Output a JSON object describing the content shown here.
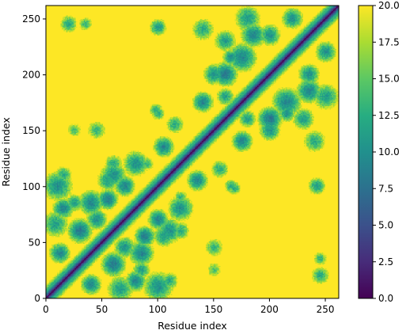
{
  "chart_data": {
    "type": "heatmap",
    "title": "",
    "xlabel": "Residue index",
    "ylabel": "Residue index",
    "n_residues": 262,
    "xlim": [
      0,
      262
    ],
    "ylim": [
      0,
      262
    ],
    "xticks": [
      0,
      50,
      100,
      150,
      200,
      250
    ],
    "yticks": [
      0,
      50,
      100,
      150,
      200,
      250
    ],
    "x_tick_labels": [
      "0",
      "50",
      "100",
      "150",
      "200",
      "250"
    ],
    "y_tick_labels": [
      "0",
      "50",
      "100",
      "150",
      "200",
      "250"
    ],
    "colormap": "viridis",
    "vmin": 0.0,
    "vmax": 20.0,
    "colorbar_ticks": [
      0.0,
      2.5,
      5.0,
      7.5,
      10.0,
      12.5,
      15.0,
      17.5,
      20.0
    ],
    "colorbar_tick_labels": [
      "0.0",
      "2.5",
      "5.0",
      "7.5",
      "10.0",
      "12.5",
      "15.0",
      "17.5",
      "20.0"
    ],
    "description_of_values": "Symmetric pairwise residue distance map; diagonal ~0, saturated at 20 elsewhere except contact blobs",
    "contacts": [
      {
        "i": 12,
        "j": 40,
        "r": 10,
        "v": 9
      },
      {
        "i": 8,
        "j": 66,
        "r": 12,
        "v": 11
      },
      {
        "i": 10,
        "j": 100,
        "r": 14,
        "v": 10
      },
      {
        "i": 15,
        "j": 80,
        "r": 10,
        "v": 9
      },
      {
        "i": 30,
        "j": 60,
        "r": 12,
        "v": 8
      },
      {
        "i": 25,
        "j": 85,
        "r": 8,
        "v": 11
      },
      {
        "i": 40,
        "j": 85,
        "r": 12,
        "v": 9
      },
      {
        "i": 55,
        "j": 88,
        "r": 10,
        "v": 8
      },
      {
        "i": 45,
        "j": 70,
        "r": 10,
        "v": 10
      },
      {
        "i": 60,
        "j": 110,
        "r": 12,
        "v": 10
      },
      {
        "i": 70,
        "j": 100,
        "r": 10,
        "v": 9
      },
      {
        "i": 80,
        "j": 120,
        "r": 12,
        "v": 10
      },
      {
        "i": 105,
        "j": 135,
        "r": 10,
        "v": 9
      },
      {
        "i": 110,
        "j": 15,
        "r": 8,
        "v": 12
      },
      {
        "i": 105,
        "j": 55,
        "r": 10,
        "v": 11
      },
      {
        "i": 120,
        "j": 60,
        "r": 8,
        "v": 12
      },
      {
        "i": 160,
        "j": 200,
        "r": 12,
        "v": 8
      },
      {
        "i": 175,
        "j": 215,
        "r": 14,
        "v": 9
      },
      {
        "i": 150,
        "j": 200,
        "r": 10,
        "v": 10
      },
      {
        "i": 140,
        "j": 175,
        "r": 10,
        "v": 9
      },
      {
        "i": 185,
        "j": 235,
        "r": 12,
        "v": 9
      },
      {
        "i": 200,
        "j": 235,
        "r": 10,
        "v": 10
      },
      {
        "i": 180,
        "j": 250,
        "r": 12,
        "v": 11
      },
      {
        "i": 220,
        "j": 250,
        "r": 10,
        "v": 10
      },
      {
        "i": 160,
        "j": 230,
        "r": 10,
        "v": 11
      },
      {
        "i": 165,
        "j": 215,
        "r": 8,
        "v": 10
      },
      {
        "i": 155,
        "j": 115,
        "r": 8,
        "v": 12
      },
      {
        "i": 140,
        "j": 240,
        "r": 10,
        "v": 12
      },
      {
        "i": 100,
        "j": 165,
        "r": 6,
        "v": 12
      },
      {
        "i": 20,
        "j": 245,
        "r": 8,
        "v": 12
      },
      {
        "i": 35,
        "j": 245,
        "r": 6,
        "v": 13
      },
      {
        "i": 168,
        "j": 98,
        "r": 6,
        "v": 12
      },
      {
        "i": 45,
        "j": 150,
        "r": 8,
        "v": 13
      },
      {
        "i": 25,
        "j": 150,
        "r": 6,
        "v": 14
      },
      {
        "i": 242,
        "j": 100,
        "r": 8,
        "v": 11
      },
      {
        "i": 120,
        "j": 90,
        "r": 6,
        "v": 13
      },
      {
        "i": 180,
        "j": 160,
        "r": 8,
        "v": 11
      }
    ],
    "grid": false,
    "legend": "none"
  }
}
